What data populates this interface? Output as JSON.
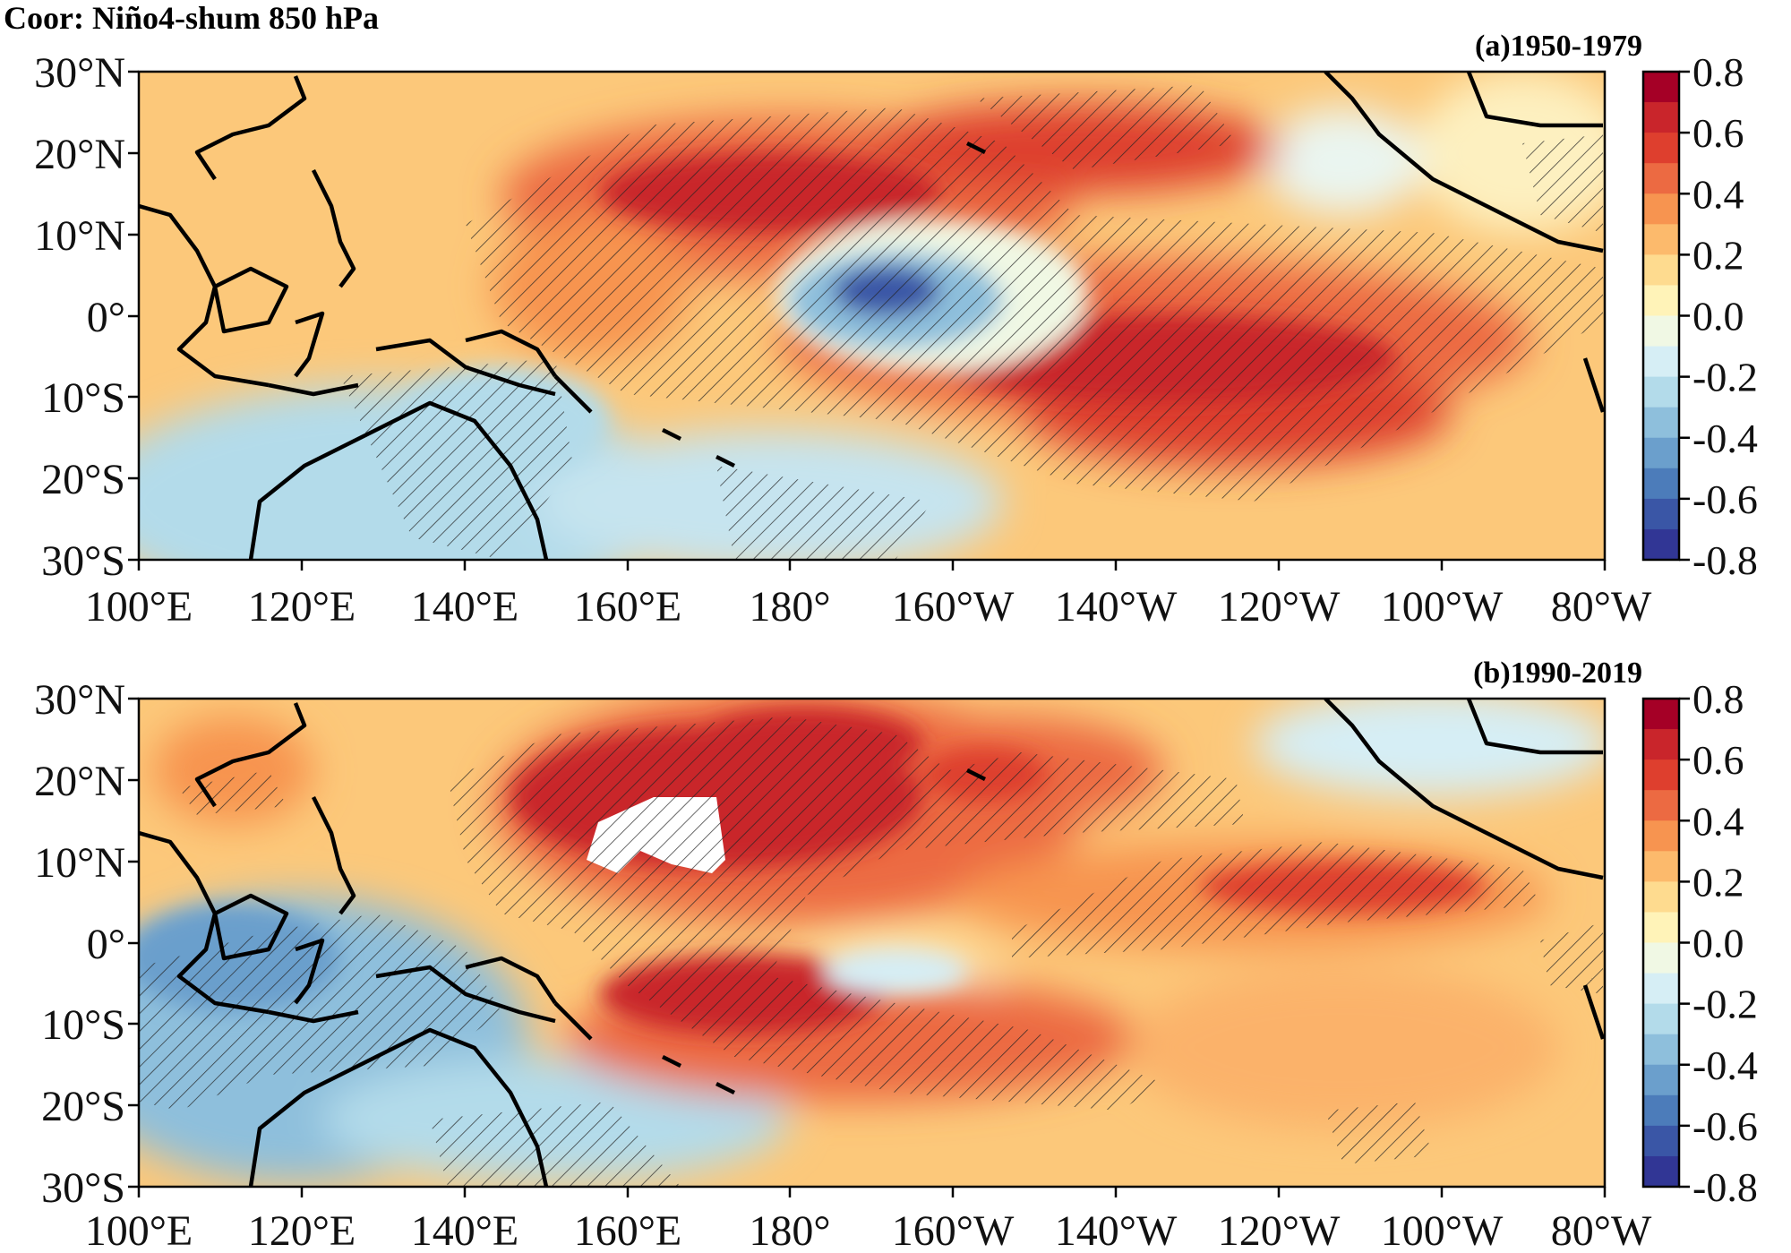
{
  "figure_title": "Coor: Niño4-shum 850 hPa",
  "panels": [
    {
      "label": "(a)1950-1979"
    },
    {
      "label": "(b)1990-2019"
    }
  ],
  "lat_ticks": [
    "30°N",
    "20°N",
    "10°N",
    "0°",
    "10°S",
    "20°S",
    "30°S"
  ],
  "lon_ticks": [
    "100°E",
    "120°E",
    "140°E",
    "160°E",
    "180°",
    "160°W",
    "140°W",
    "120°W",
    "100°W",
    "80°W"
  ],
  "colorbar": {
    "labels": [
      "0.8",
      "0.6",
      "0.4",
      "0.2",
      "0.0",
      "-0.2",
      "-0.4",
      "-0.6",
      "-0.8"
    ],
    "colors": [
      "#a50026",
      "#c9252b",
      "#de3f2e",
      "#ec6a42",
      "#f79450",
      "#fcba6c",
      "#fedb8f",
      "#fff3b8",
      "#f0f8e4",
      "#d6eef5",
      "#b3dbea",
      "#8ebfdc",
      "#6b9fcc",
      "#4c7cba",
      "#3a56a6",
      "#313695"
    ]
  }
}
